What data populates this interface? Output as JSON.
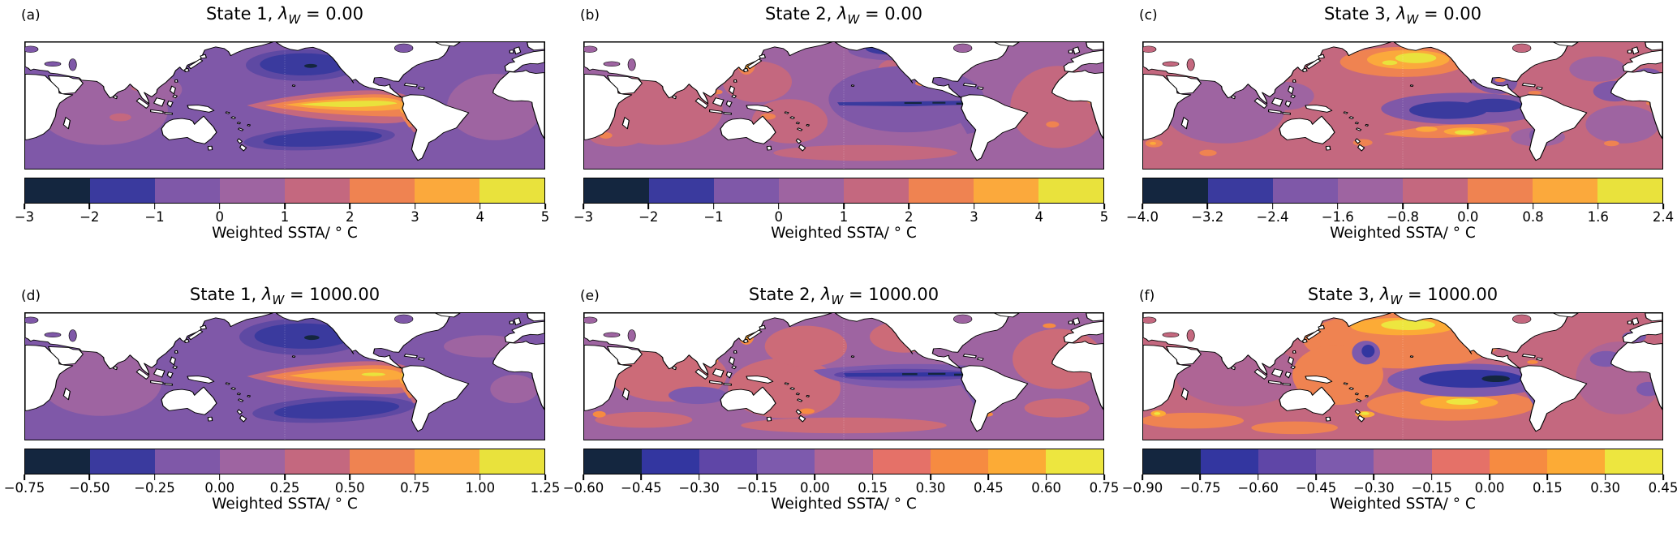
{
  "figure": {
    "colors": {
      "background": "#ffffff",
      "land": "#ffffff",
      "coastline": "#000000",
      "text": "#000000",
      "palette_8": [
        "#14263f",
        "#3a3a9e",
        "#7f58a8",
        "#9e64a1",
        "#c4687f",
        "#ef8351",
        "#fba93c",
        "#e9e23c"
      ],
      "palette_9": [
        "#14263f",
        "#3336a0",
        "#5f46a7",
        "#7d5aad",
        "#ae6595",
        "#e57168",
        "#f68b41",
        "#fcab36",
        "#ede63f"
      ]
    },
    "panels": [
      {
        "letter": "(a)",
        "title_prefix": "State 1, ",
        "lambda_symbol": "λ",
        "lambda_subscript": "W",
        "title_suffix": " = 0.00",
        "xlabel": "Weighted SSTA/ ° C",
        "colorbar": {
          "ticks": [
            "−3",
            "−2",
            "−1",
            "0",
            "1",
            "2",
            "3",
            "4",
            "5"
          ],
          "colors": [
            "#14263f",
            "#3a3a9e",
            "#7f58a8",
            "#9e64a1",
            "#c4687f",
            "#ef8351",
            "#fba93c",
            "#e9e23c"
          ]
        }
      },
      {
        "letter": "(b)",
        "title_prefix": "State 2, ",
        "lambda_symbol": "λ",
        "lambda_subscript": "W",
        "title_suffix": " = 0.00",
        "xlabel": "Weighted SSTA/ ° C",
        "colorbar": {
          "ticks": [
            "−3",
            "−2",
            "−1",
            "0",
            "1",
            "2",
            "3",
            "4",
            "5"
          ],
          "colors": [
            "#14263f",
            "#3a3a9e",
            "#7f58a8",
            "#9e64a1",
            "#c4687f",
            "#ef8351",
            "#fba93c",
            "#e9e23c"
          ]
        }
      },
      {
        "letter": "(c)",
        "title_prefix": "State 3, ",
        "lambda_symbol": "λ",
        "lambda_subscript": "W",
        "title_suffix": " = 0.00",
        "xlabel": "Weighted SSTA/ ° C",
        "colorbar": {
          "ticks": [
            "−4.0",
            "−3.2",
            "−2.4",
            "−1.6",
            "−0.8",
            "0.0",
            "0.8",
            "1.6",
            "2.4"
          ],
          "colors": [
            "#14263f",
            "#3a3a9e",
            "#7f58a8",
            "#9e64a1",
            "#c4687f",
            "#ef8351",
            "#fba93c",
            "#e9e23c"
          ]
        }
      },
      {
        "letter": "(d)",
        "title_prefix": "State 1, ",
        "lambda_symbol": "λ",
        "lambda_subscript": "W",
        "title_suffix": " = 1000.00",
        "xlabel": "Weighted SSTA/ ° C",
        "colorbar": {
          "ticks": [
            "−0.75",
            "−0.50",
            "−0.25",
            "0.00",
            "0.25",
            "0.50",
            "0.75",
            "1.00",
            "1.25"
          ],
          "colors": [
            "#14263f",
            "#3a3a9e",
            "#7f58a8",
            "#9e64a1",
            "#c4687f",
            "#ef8351",
            "#fba93c",
            "#e9e23c"
          ]
        }
      },
      {
        "letter": "(e)",
        "title_prefix": "State 2, ",
        "lambda_symbol": "λ",
        "lambda_subscript": "W",
        "title_suffix": " = 1000.00",
        "xlabel": "Weighted SSTA/ ° C",
        "colorbar": {
          "ticks": [
            "−0.60",
            "−0.45",
            "−0.30",
            "−0.15",
            "0.00",
            "0.15",
            "0.30",
            "0.45",
            "0.60",
            "0.75"
          ],
          "colors": [
            "#14263f",
            "#3336a0",
            "#5f46a7",
            "#7d5aad",
            "#ae6595",
            "#e57168",
            "#f68b41",
            "#fcab36",
            "#ede63f"
          ]
        }
      },
      {
        "letter": "(f)",
        "title_prefix": "State 3, ",
        "lambda_symbol": "λ",
        "lambda_subscript": "W",
        "title_suffix": " = 1000.00",
        "xlabel": "Weighted SSTA/ ° C",
        "colorbar": {
          "ticks": [
            "−0.90",
            "−0.75",
            "−0.60",
            "−0.45",
            "−0.30",
            "−0.15",
            "0.00",
            "0.15",
            "0.30",
            "0.45"
          ],
          "colors": [
            "#14263f",
            "#3336a0",
            "#5f46a7",
            "#7d5aad",
            "#ae6595",
            "#e57168",
            "#f68b41",
            "#fcab36",
            "#ede63f"
          ]
        }
      }
    ]
  },
  "chart_data": [
    {
      "type": "heatmap",
      "panel": "a",
      "title": "State 1, λ_W = 0.00",
      "colorbar_label": "Weighted SSTA/ ° C",
      "levels": [
        -3,
        -2,
        -1,
        0,
        1,
        2,
        3,
        4,
        5
      ],
      "palette": [
        "#14263f",
        "#3a3a9e",
        "#7f58a8",
        "#9e64a1",
        "#c4687f",
        "#ef8351",
        "#fba93c",
        "#e9e23c"
      ],
      "map": "Pacific-centered world map (~20°E–380°E, ~65°S–65°N), filled SSTA contours over ocean, land white with black coastlines",
      "notable_features": [
        "strong El Niño-like warm tongue reaching +4 to +5 °C along the eastern equatorial Pacific",
        "cold anomaly near −2 °C in the central North Pacific",
        "cold band near −2 °C in the South Pacific around 40°S",
        "weak anomalies (−1 to +1 °C) elsewhere"
      ]
    },
    {
      "type": "heatmap",
      "panel": "b",
      "title": "State 2, λ_W = 0.00",
      "colorbar_label": "Weighted SSTA/ ° C",
      "levels": [
        -3,
        -2,
        -1,
        0,
        1,
        2,
        3,
        4,
        5
      ],
      "palette": [
        "#14263f",
        "#3a3a9e",
        "#7f58a8",
        "#9e64a1",
        "#c4687f",
        "#ef8351",
        "#fba93c",
        "#e9e23c"
      ],
      "map": "Pacific-centered world map (~20°E–380°E, ~65°S–65°N), filled SSTA contours over ocean, land white with black coastlines",
      "notable_features": [
        "narrow La Niña-like cold tongue near −2 °C along the equatorial central/eastern Pacific",
        "warm spot (+3 to +4 °C) off Japan",
        "broad weak warm anomalies (0 to +1 °C) in the Indian and Atlantic Oceans",
        "cool patch in the eastern subtropical Pacific"
      ]
    },
    {
      "type": "heatmap",
      "panel": "c",
      "title": "State 3, λ_W = 0.00",
      "colorbar_label": "Weighted SSTA/ ° C",
      "levels": [
        -4.0,
        -3.2,
        -2.4,
        -1.6,
        -0.8,
        0.0,
        0.8,
        1.6,
        2.4
      ],
      "palette": [
        "#14263f",
        "#3a3a9e",
        "#7f58a8",
        "#9e64a1",
        "#c4687f",
        "#ef8351",
        "#fba93c",
        "#e9e23c"
      ],
      "map": "Pacific-centered world map (~20°E–380°E, ~65°S–65°N), filled SSTA contours over ocean, land white with black coastlines",
      "notable_features": [
        "warm blob up to +2.4 °C in the central North Pacific",
        "cold anomaly near −2.4 °C in the central equatorial Pacific",
        "warm band (+0.8 to +1.6 °C) in the South Pacific around 30°S",
        "weak warm anomalies elsewhere"
      ]
    },
    {
      "type": "heatmap",
      "panel": "d",
      "title": "State 1, λ_W = 1000.00",
      "colorbar_label": "Weighted SSTA/ ° C",
      "levels": [
        -0.75,
        -0.5,
        -0.25,
        0.0,
        0.25,
        0.5,
        0.75,
        1.0,
        1.25
      ],
      "palette": [
        "#14263f",
        "#3a3a9e",
        "#7f58a8",
        "#9e64a1",
        "#c4687f",
        "#ef8351",
        "#fba93c",
        "#e9e23c"
      ],
      "map": "Pacific-centered world map (~20°E–380°E, ~65°S–65°N), filled SSTA contours over ocean, land white with black coastlines",
      "notable_features": [
        "El Niño-like warm tongue reaching +1.00 to +1.25 °C in the eastern equatorial Pacific",
        "cold anomaly near −0.50 °C in the central North Pacific",
        "cold band in the South Pacific around 40°S"
      ]
    },
    {
      "type": "heatmap",
      "panel": "e",
      "title": "State 2, λ_W = 1000.00",
      "colorbar_label": "Weighted SSTA/ ° C",
      "levels": [
        -0.6,
        -0.45,
        -0.3,
        -0.15,
        0.0,
        0.15,
        0.3,
        0.45,
        0.6,
        0.75
      ],
      "palette": [
        "#14263f",
        "#3336a0",
        "#5f46a7",
        "#7d5aad",
        "#ae6595",
        "#e57168",
        "#f68b41",
        "#fcab36",
        "#ede63f"
      ],
      "map": "Pacific-centered world map (~20°E–380°E, ~65°S–65°N), filled SSTA contours over ocean, land white with black coastlines",
      "notable_features": [
        "narrow cold tongue (−0.45 to −0.60 °C) along the equatorial central/eastern Pacific extending down the South American coast",
        "warm spot (+0.45 °C) off Japan",
        "weak warm anomalies (0 to +0.3 °C) elsewhere"
      ]
    },
    {
      "type": "heatmap",
      "panel": "f",
      "title": "State 3, λ_W = 1000.00",
      "colorbar_label": "Weighted SSTA/ ° C",
      "levels": [
        -0.9,
        -0.75,
        -0.6,
        -0.45,
        -0.3,
        -0.15,
        0.0,
        0.15,
        0.3,
        0.45
      ],
      "palette": [
        "#14263f",
        "#3336a0",
        "#5f46a7",
        "#7d5aad",
        "#ae6595",
        "#e57168",
        "#f68b41",
        "#fcab36",
        "#ede63f"
      ],
      "map": "Pacific-centered world map (~20°E–380°E, ~65°S–65°N), filled SSTA contours over ocean, land white with black coastlines",
      "notable_features": [
        "warm blob (+0.30 to +0.45 °C) in the central North Pacific",
        "strong cold anomaly (−0.75 to −0.90 °C) in the eastern equatorial Pacific",
        "warm band (+0.15 to +0.45 °C) in the South Pacific around 25°S",
        "warm anomalies through much of the western Pacific"
      ]
    }
  ]
}
